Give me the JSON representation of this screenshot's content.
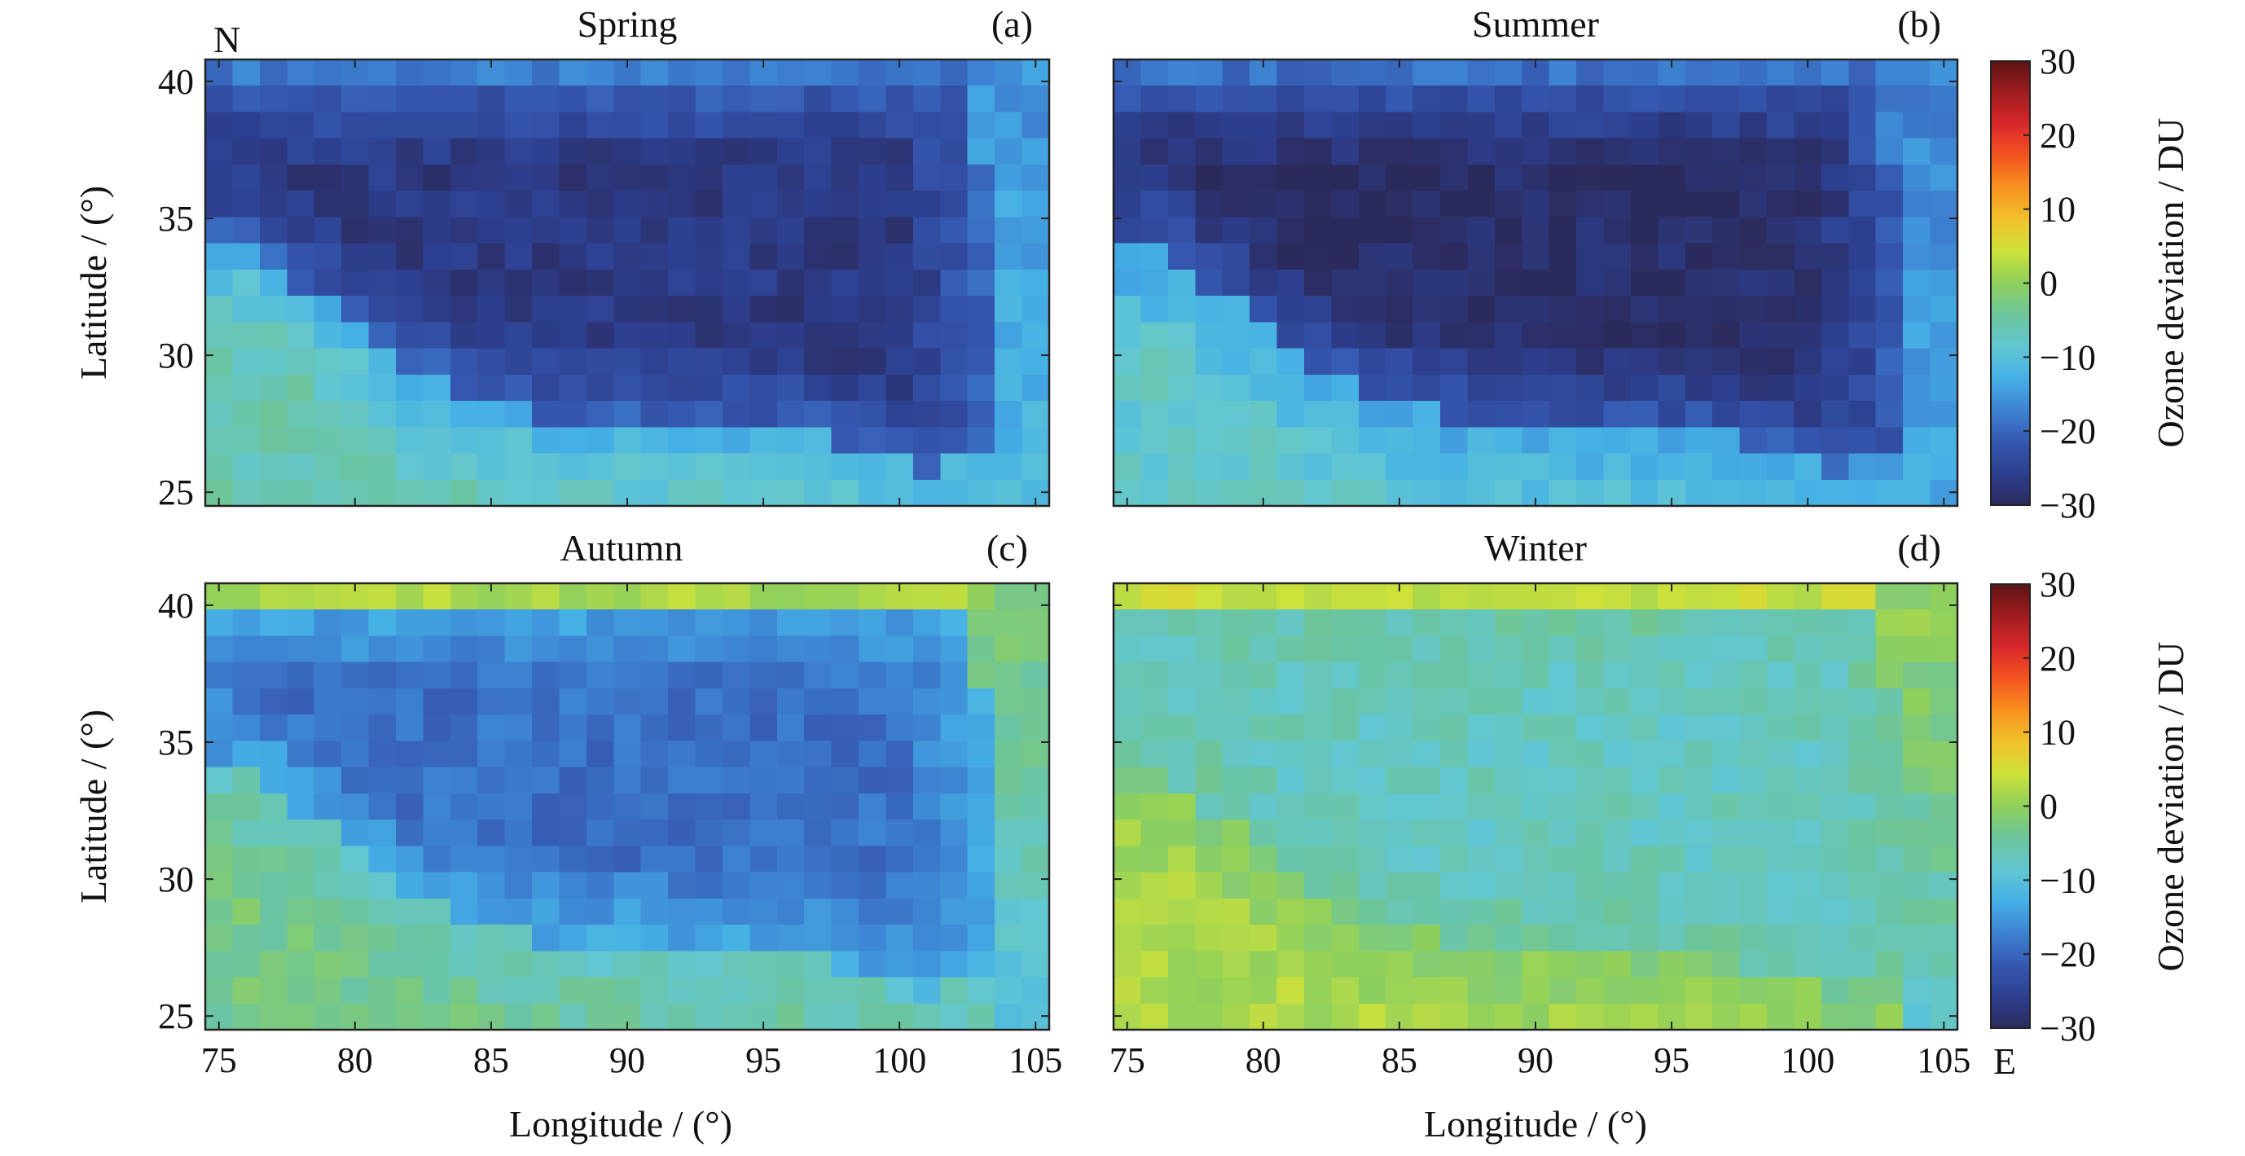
{
  "chart_data": {
    "type": "heatmap",
    "xlabel": "Longitude / (°)",
    "ylabel": "Latitude / (°)",
    "xlim": [
      74.5,
      105.5
    ],
    "ylim": [
      24.5,
      40.8
    ],
    "xticks": [
      "75",
      "80",
      "85",
      "90",
      "95",
      "100",
      "105"
    ],
    "yticks": [
      "25",
      "30",
      "35",
      "40"
    ],
    "north_label": "N",
    "east_label": "E",
    "colorbar": {
      "label": "Ozone deviation / DU",
      "range": [
        -30,
        30
      ],
      "ticks": [
        "30",
        "20",
        "10",
        "0",
        "−10",
        "−20",
        "−30"
      ],
      "colormap": [
        "#2b2a5c",
        "#2d3f8f",
        "#3558b0",
        "#3d83d2",
        "#45b0e6",
        "#62c7d2",
        "#6cc59c",
        "#8fd05c",
        "#cde13a",
        "#f2c32c",
        "#f8921f",
        "#f4551f",
        "#d9282a",
        "#a01c1f",
        "#5c1414"
      ]
    },
    "panels": [
      {
        "title": "Spring",
        "letter": "(a)",
        "description": "Strong negative deviation over the Tibetan Plateau (about −25 to −30 DU in the core), weaker (about −5 to −10 DU) to the south-west and near 105°E",
        "plateau": {
          "core": -27,
          "edge": -20
        },
        "outside": {
          "south": -6,
          "north": -18,
          "east": -11
        }
      },
      {
        "title": "Summer",
        "letter": "(b)",
        "description": "Strongest negative deviation (about −28 to −30 DU) centred near 90°E, 35°N, surrounded by −18 to −22 DU; about −8 to −10 DU to the south-west",
        "plateau": {
          "core": -29,
          "edge": -21
        },
        "outside": {
          "south": -8,
          "north": -19,
          "east": -13
        }
      },
      {
        "title": "Autumn",
        "letter": "(c)",
        "description": "Moderate negative deviation (about −15 to −20 DU) over the plateau, near 0 to +5 DU at the northern edge and around −3 DU to the south",
        "plateau": {
          "core": -19,
          "edge": -13
        },
        "outside": {
          "south": -3,
          "north": 2,
          "east": -10
        }
      },
      {
        "title": "Winter",
        "letter": "(d)",
        "description": "Weak deviation (about −5 to −10 DU) over the plateau, positive (+5 to +15 DU) in the north-east and the south-west corner",
        "plateau": {
          "core": -7,
          "edge": -5
        },
        "outside": {
          "south": 2,
          "north": 4,
          "east": -8
        }
      }
    ]
  }
}
